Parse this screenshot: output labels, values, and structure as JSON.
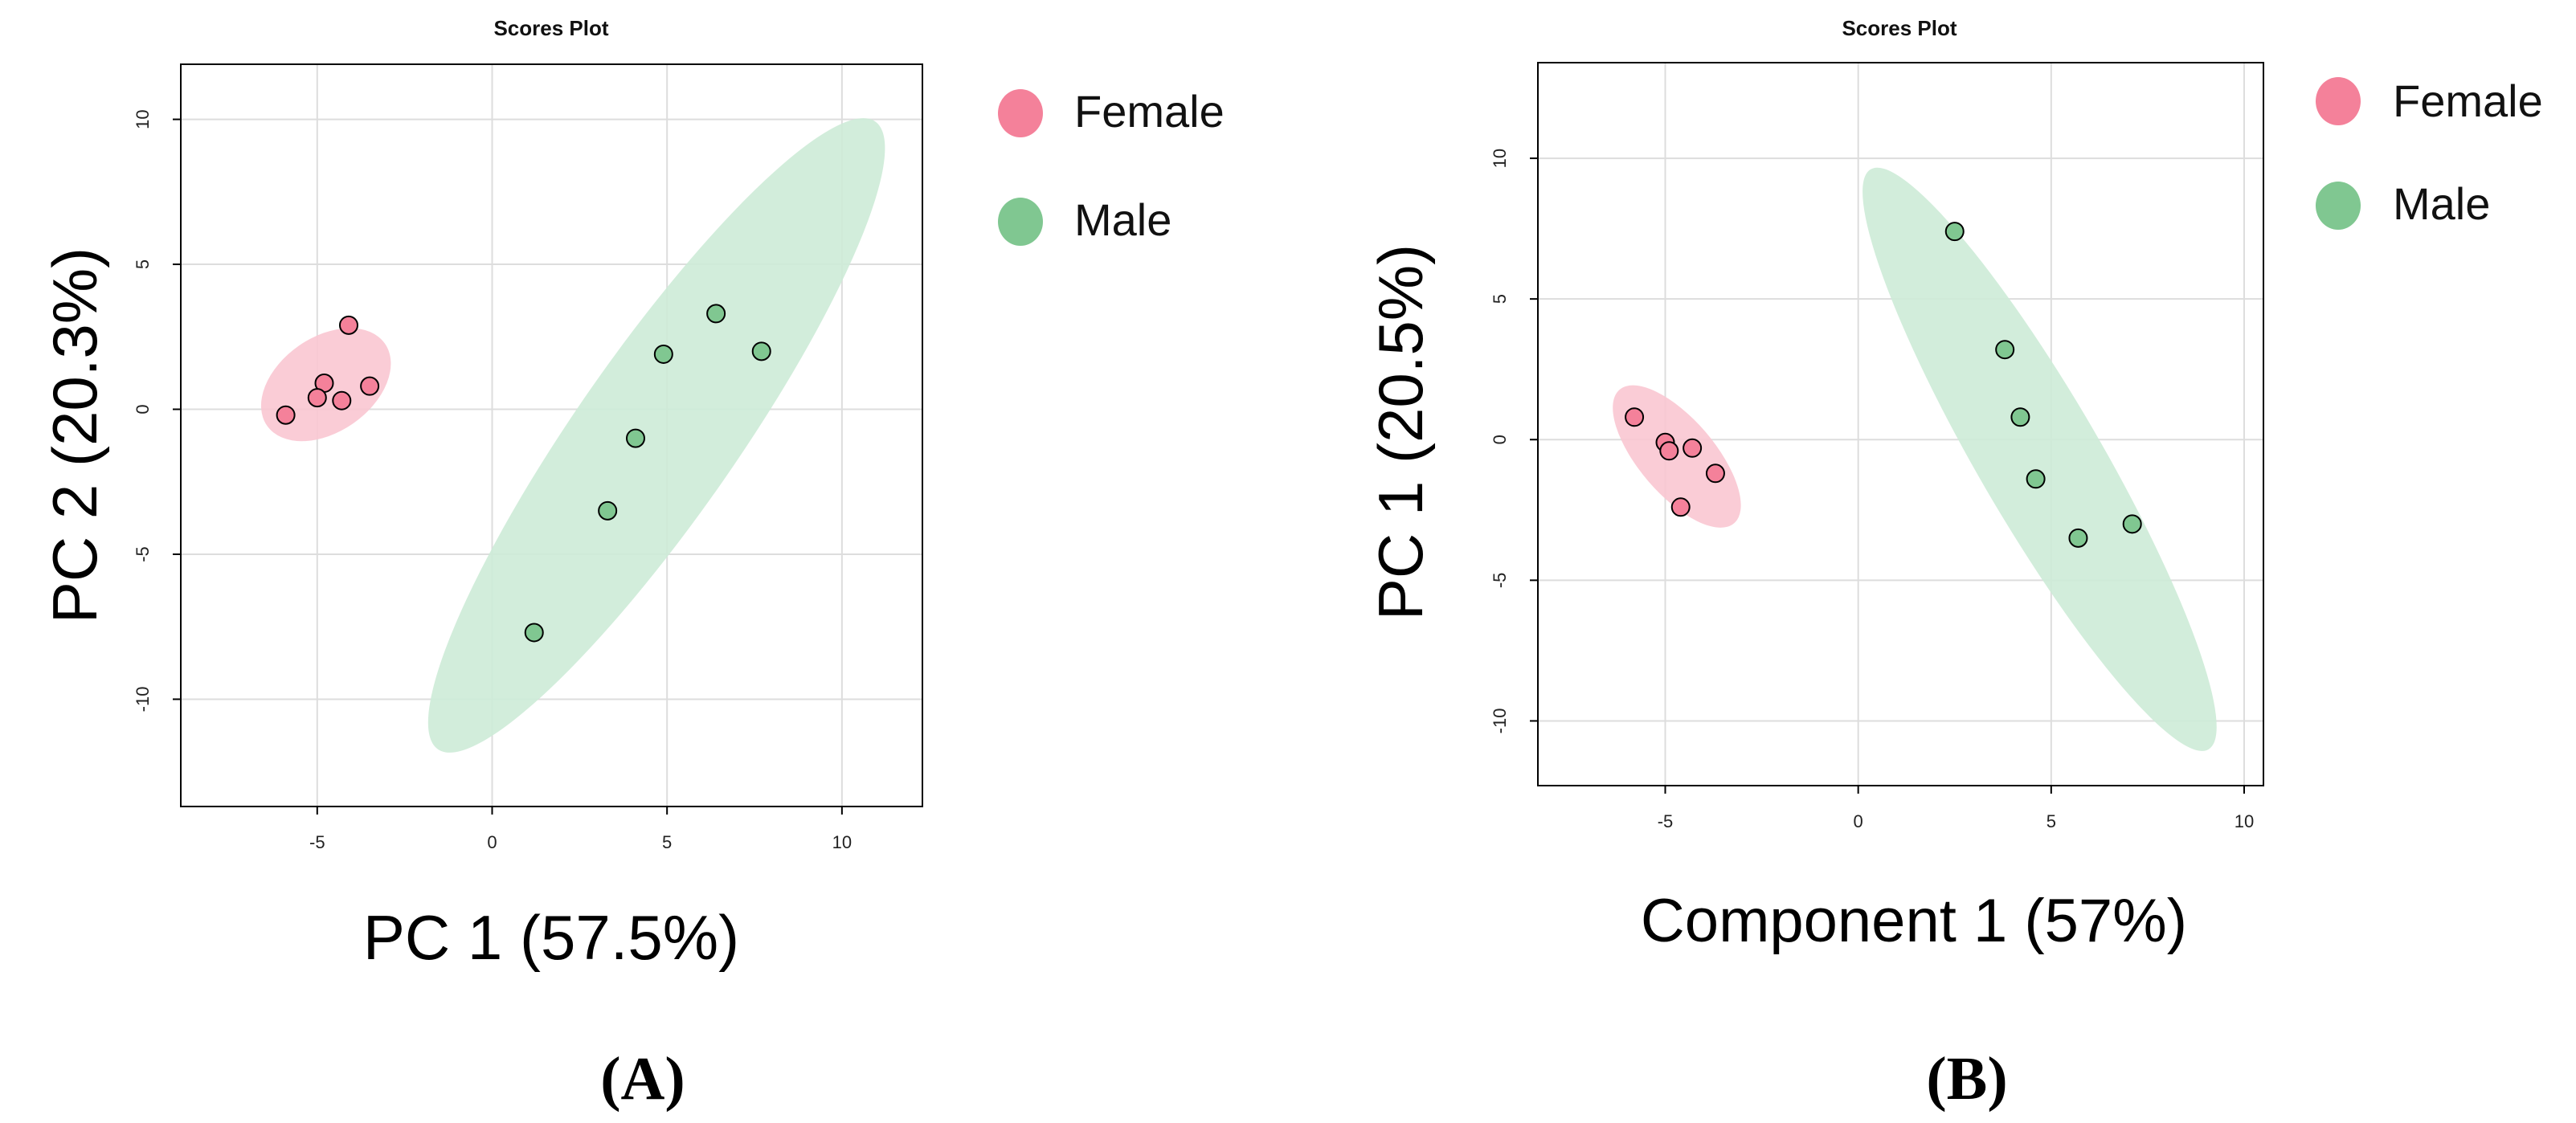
{
  "colors": {
    "female": "#f4819a",
    "female_ellipse": "#f9c6d1",
    "male": "#80c791",
    "male_ellipse": "#cdebd7",
    "grid": "#dddddd",
    "frame": "#000000"
  },
  "chart_data": [
    {
      "id": "A",
      "type": "scatter",
      "panel_label": "(A)",
      "title": "Scores Plot",
      "xlabel": "PC 1 (57.5%)",
      "ylabel": "PC 2 (20.3%)",
      "xlim": [
        -8.9,
        12.3
      ],
      "ylim": [
        -13.7,
        11.9
      ],
      "xticks": [
        -5,
        0,
        5,
        10
      ],
      "yticks": [
        -10,
        -5,
        0,
        5,
        10
      ],
      "legend": [
        {
          "label": "Female",
          "key": "female"
        },
        {
          "label": "Male",
          "key": "male"
        }
      ],
      "series": [
        {
          "name": "Female",
          "key": "female",
          "points": [
            [
              -5.9,
              -0.2
            ],
            [
              -4.1,
              2.9
            ],
            [
              -4.8,
              0.9
            ],
            [
              -5.0,
              0.4
            ],
            [
              -4.3,
              0.3
            ],
            [
              -3.5,
              0.8
            ]
          ],
          "ellipse": {
            "cx": -4.75,
            "cy": 0.85,
            "rx": 2.2,
            "ry": 1.5,
            "angle": 40
          }
        },
        {
          "name": "Male",
          "key": "male",
          "points": [
            [
              1.2,
              -7.7
            ],
            [
              3.3,
              -3.5
            ],
            [
              4.1,
              -1.0
            ],
            [
              4.9,
              1.9
            ],
            [
              6.4,
              3.3
            ],
            [
              7.7,
              2.0
            ]
          ],
          "ellipse": {
            "cx": 4.7,
            "cy": -0.9,
            "rx": 12.5,
            "ry": 2.4,
            "angle": 60
          }
        }
      ]
    },
    {
      "id": "B",
      "type": "scatter",
      "panel_label": "(B)",
      "title": "Scores Plot",
      "xlabel": "Component 1 (57%)",
      "ylabel": "PC 1 (20.5%)",
      "xlim": [
        -8.3,
        10.5
      ],
      "ylim": [
        -12.3,
        13.4
      ],
      "xticks": [
        -5,
        0,
        5,
        10
      ],
      "yticks": [
        -10,
        -5,
        0,
        5,
        10
      ],
      "legend": [
        {
          "label": "Female",
          "key": "female"
        },
        {
          "label": "Male",
          "key": "male"
        }
      ],
      "series": [
        {
          "name": "Female",
          "key": "female",
          "points": [
            [
              -5.8,
              0.8
            ],
            [
              -5.0,
              -0.1
            ],
            [
              -4.9,
              -0.4
            ],
            [
              -4.3,
              -0.3
            ],
            [
              -3.7,
              -1.2
            ],
            [
              -4.6,
              -2.4
            ]
          ],
          "ellipse": {
            "cx": -4.7,
            "cy": -0.6,
            "rx": 2.8,
            "ry": 1.05,
            "angle": -58
          }
        },
        {
          "name": "Male",
          "key": "male",
          "points": [
            [
              2.5,
              7.4
            ],
            [
              3.8,
              3.2
            ],
            [
              4.2,
              0.8
            ],
            [
              4.6,
              -1.4
            ],
            [
              5.7,
              -3.5
            ],
            [
              7.1,
              -3.0
            ]
          ],
          "ellipse": {
            "cx": 4.7,
            "cy": -0.7,
            "rx": 11.2,
            "ry": 1.65,
            "angle": -67
          }
        }
      ]
    }
  ]
}
